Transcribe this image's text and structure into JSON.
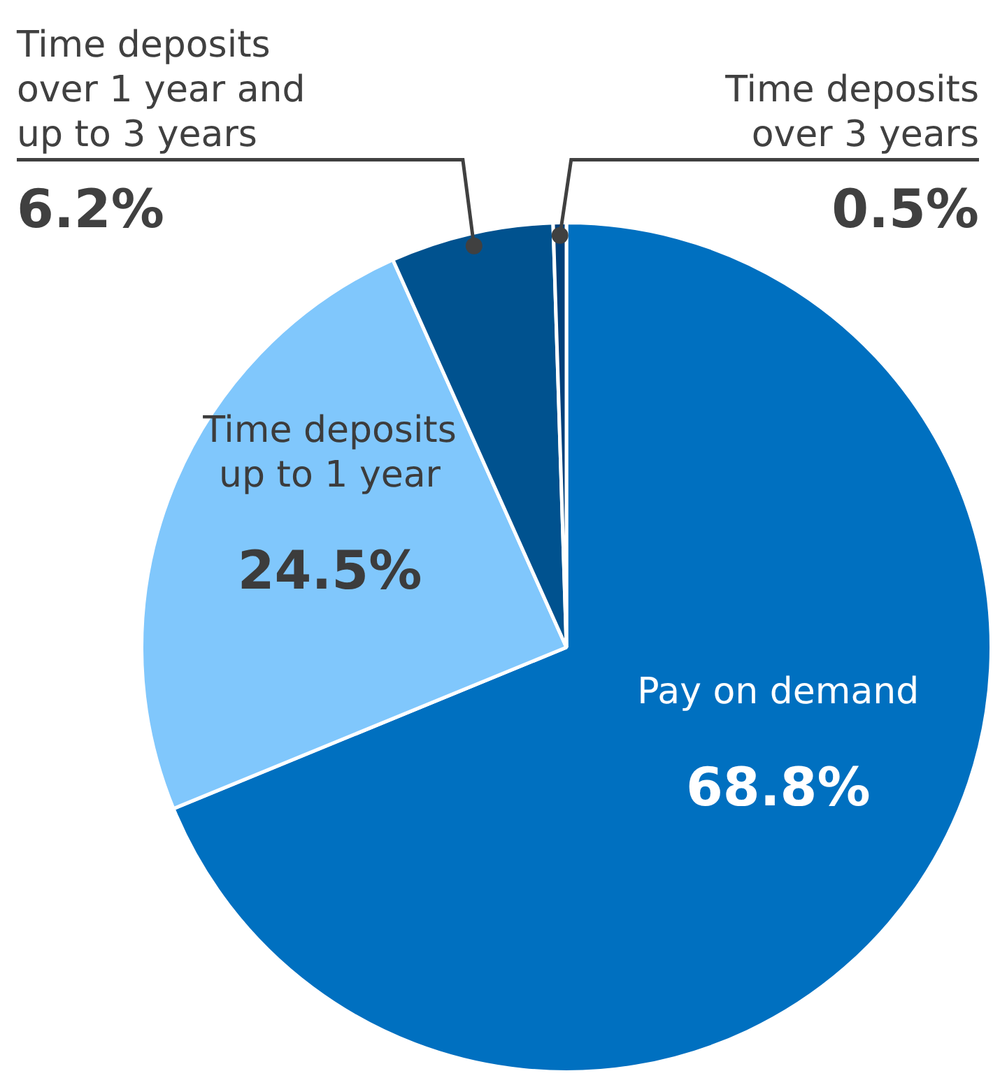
{
  "chart_data": {
    "type": "pie",
    "categories": [
      "Pay on demand",
      "Time deposits up to 1 year",
      "Time deposits over 1 year and up to 3 years",
      "Time deposits over 3 years"
    ],
    "values": [
      68.8,
      24.5,
      6.2,
      0.5
    ],
    "colors": [
      "#0070c0",
      "#80c7fc",
      "#00528f",
      "#003f7a"
    ],
    "value_labels": [
      "68.8%",
      "24.5%",
      "6.2%",
      "0.5%"
    ]
  }
}
